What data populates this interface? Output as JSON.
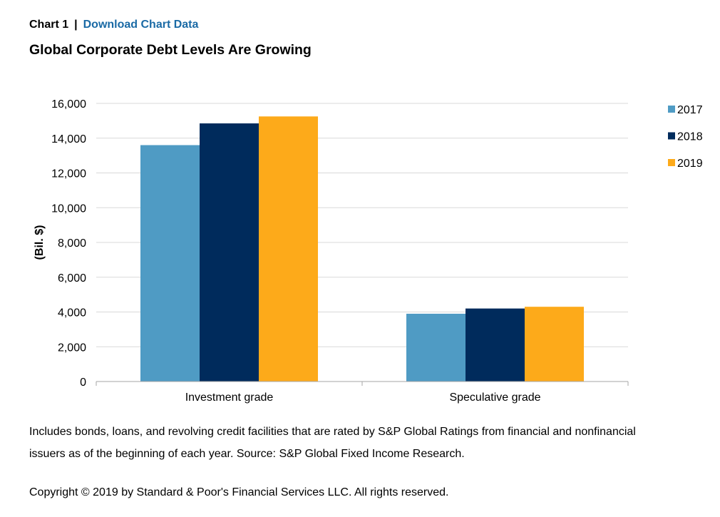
{
  "header": {
    "chart_label": "Chart 1",
    "separator": "|",
    "download_link": "Download Chart Data"
  },
  "title": "Global Corporate Debt Levels Are Growing",
  "chart_data": {
    "type": "bar",
    "categories": [
      "Investment grade",
      "Speculative grade"
    ],
    "series": [
      {
        "name": "2017",
        "color": "#4f9bc4",
        "values": [
          13600,
          3900
        ]
      },
      {
        "name": "2018",
        "color": "#002b5c",
        "values": [
          14850,
          4200
        ]
      },
      {
        "name": "2019",
        "color": "#fdaa1a",
        "values": [
          15250,
          4300
        ]
      }
    ],
    "ylabel": "(Bil. $)",
    "ylim": [
      0,
      16000
    ],
    "yticks": [
      "0",
      "2,000",
      "4,000",
      "6,000",
      "8,000",
      "10,000",
      "12,000",
      "14,000",
      "16,000"
    ],
    "grid": true,
    "legend_position": "right"
  },
  "note": "Includes bonds, loans, and revolving credit facilities that are rated by S&P Global Ratings from financial and nonfinancial issuers as of the beginning of each year. Source: S&P Global Fixed Income Research.",
  "copyright": "Copyright © 2019 by Standard & Poor's Financial Services LLC. All rights reserved."
}
